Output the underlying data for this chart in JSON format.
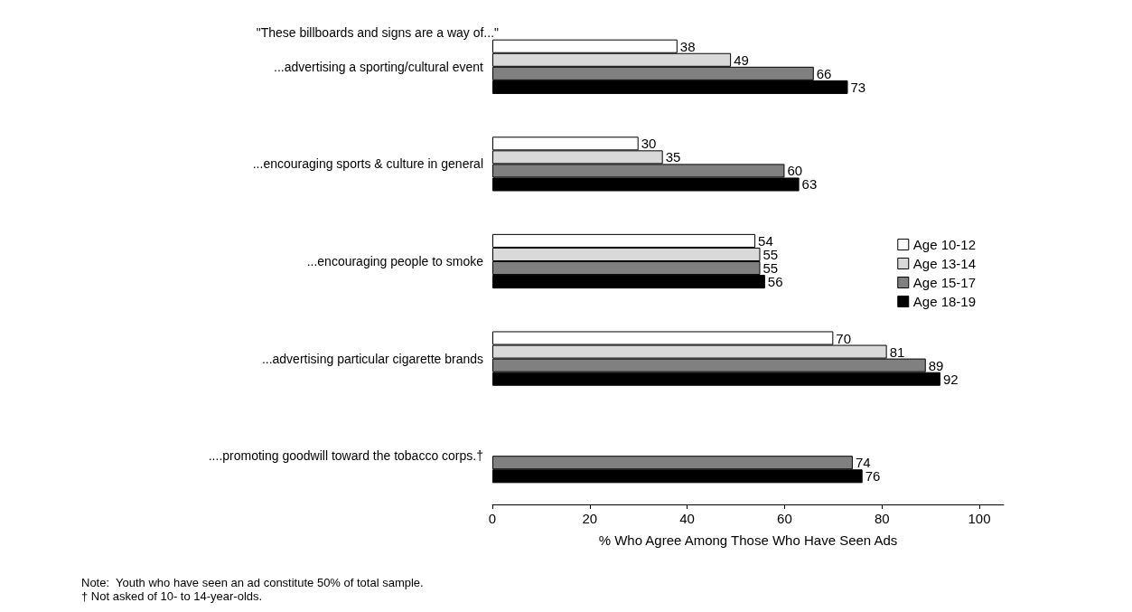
{
  "chart_data": {
    "type": "bar",
    "orientation": "horizontal",
    "title": "\"These billboards and signs are a way of...\"",
    "categories": [
      "...advertising a sporting/cultural event",
      "...encouraging sports & culture in general",
      "...encouraging people to smoke",
      "...advertising particular cigarette brands",
      "....promoting goodwill toward the tobacco corps.†"
    ],
    "series": [
      {
        "name": "Age 10-12",
        "color": "#ffffff",
        "values": [
          38,
          30,
          54,
          70,
          null
        ]
      },
      {
        "name": "Age 13-14",
        "color": "#d9d9d9",
        "values": [
          49,
          35,
          55,
          81,
          null
        ]
      },
      {
        "name": "Age 15-17",
        "color": "#808080",
        "values": [
          66,
          60,
          55,
          89,
          74
        ]
      },
      {
        "name": "Age 18-19",
        "color": "#000000",
        "values": [
          73,
          63,
          56,
          92,
          76
        ]
      }
    ],
    "xlim": [
      0,
      105
    ],
    "xticks": [
      0,
      20,
      40,
      60,
      80,
      100
    ],
    "xlabel": "% Who Agree Among Those Who Have Seen Ads",
    "data_labels": true,
    "grid": false,
    "legend": "right",
    "annotations": [
      "Note:  Youth who have seen an ad constitute 50% of total sample.",
      "† Not asked of 10- to 14-year-olds."
    ]
  }
}
